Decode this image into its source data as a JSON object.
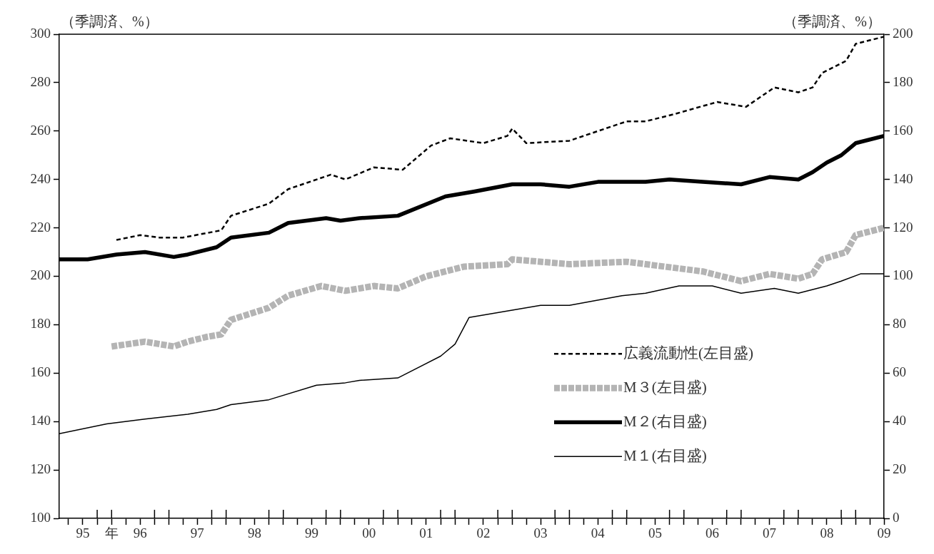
{
  "chart_data": {
    "type": "line",
    "ylabel": "（季調済、%）",
    "y2label": "（季調済、%）",
    "xlim": [
      "1995-02",
      "2009-07"
    ],
    "ylim": [
      100,
      300
    ],
    "y2lim": [
      0,
      200
    ],
    "yticks": [
      100,
      120,
      140,
      160,
      180,
      200,
      220,
      240,
      260,
      280,
      300
    ],
    "y2ticks": [
      0,
      20,
      40,
      60,
      80,
      100,
      120,
      140,
      160,
      180,
      200
    ],
    "xticks": [
      {
        "value": "1995-07",
        "label": "95"
      },
      {
        "value": "1996-01",
        "label": "年"
      },
      {
        "value": "1996-07",
        "label": "96"
      },
      {
        "value": "1997-07",
        "label": "97"
      },
      {
        "value": "1998-07",
        "label": "98"
      },
      {
        "value": "1999-07",
        "label": "99"
      },
      {
        "value": "2000-07",
        "label": "00"
      },
      {
        "value": "2001-07",
        "label": "01"
      },
      {
        "value": "2002-07",
        "label": "02"
      },
      {
        "value": "2003-07",
        "label": "03"
      },
      {
        "value": "2004-07",
        "label": "04"
      },
      {
        "value": "2005-07",
        "label": "05"
      },
      {
        "value": "2006-07",
        "label": "06"
      },
      {
        "value": "2007-07",
        "label": "07"
      },
      {
        "value": "2008-07",
        "label": "08"
      },
      {
        "value": "2009-07",
        "label": "09"
      },
      {
        "value": "1995-04",
        "label": null
      },
      {
        "value": "1995-10",
        "label": null
      },
      {
        "value": "1996-04",
        "label": null
      },
      {
        "value": "1996-10",
        "label": null
      },
      {
        "value": "1997-01",
        "label": null
      },
      {
        "value": "1997-04",
        "label": null
      },
      {
        "value": "1997-10",
        "label": null
      },
      {
        "value": "1998-01",
        "label": null
      },
      {
        "value": "1998-04",
        "label": null
      },
      {
        "value": "1998-10",
        "label": null
      },
      {
        "value": "1999-01",
        "label": null
      },
      {
        "value": "1999-04",
        "label": null
      },
      {
        "value": "1999-10",
        "label": null
      },
      {
        "value": "2000-01",
        "label": null
      },
      {
        "value": "2000-04",
        "label": null
      },
      {
        "value": "2000-10",
        "label": null
      },
      {
        "value": "2001-01",
        "label": null
      },
      {
        "value": "2001-04",
        "label": null
      },
      {
        "value": "2001-10",
        "label": null
      },
      {
        "value": "2002-01",
        "label": null
      },
      {
        "value": "2002-04",
        "label": null
      },
      {
        "value": "2002-10",
        "label": null
      },
      {
        "value": "2003-01",
        "label": null
      },
      {
        "value": "2003-04",
        "label": null
      },
      {
        "value": "2003-10",
        "label": null
      },
      {
        "value": "2004-01",
        "label": null
      },
      {
        "value": "2004-04",
        "label": null
      },
      {
        "value": "2004-10",
        "label": null
      },
      {
        "value": "2005-01",
        "label": null
      },
      {
        "value": "2005-04",
        "label": null
      },
      {
        "value": "2005-10",
        "label": null
      },
      {
        "value": "2006-01",
        "label": null
      },
      {
        "value": "2006-04",
        "label": null
      },
      {
        "value": "2006-10",
        "label": null
      },
      {
        "value": "2007-01",
        "label": null
      },
      {
        "value": "2007-04",
        "label": null
      },
      {
        "value": "2007-10",
        "label": null
      },
      {
        "value": "2008-01",
        "label": null
      },
      {
        "value": "2008-04",
        "label": null
      },
      {
        "value": "2008-10",
        "label": null
      },
      {
        "value": "2009-01",
        "label": null
      },
      {
        "value": "2009-04",
        "label": null
      }
    ],
    "grid": false,
    "legend": "bottom right",
    "marker": "none",
    "series": [
      {
        "name": "広義流動性(左目盛)",
        "color": "#000000",
        "line_style": "dashed",
        "x": [
          "1996-02",
          "1996-07",
          "1996-11",
          "1997-04",
          "1997-12",
          "1998-02",
          "1998-10",
          "1999-02",
          "1999-11",
          "2000-02",
          "2000-08",
          "2001-02",
          "2001-08",
          "2001-12",
          "2002-07",
          "2002-12",
          "2003-01",
          "2003-04",
          "2004-01",
          "2004-10",
          "2005-01",
          "2005-05",
          "2005-11",
          "2006-08",
          "2007-02",
          "2007-08",
          "2008-01",
          "2008-04",
          "2008-06",
          "2008-11",
          "2009-01",
          "2009-07"
        ],
        "values": [
          215,
          217,
          216,
          216,
          219,
          225,
          230,
          236,
          242,
          240,
          245,
          244,
          254,
          257,
          255,
          258,
          261,
          255,
          256,
          262,
          264,
          264,
          267,
          272,
          270,
          278,
          276,
          278,
          284,
          289,
          296,
          299
        ]
      },
      {
        "name": "M３(左目盛)",
        "color": "#b4b4b4",
        "line_style": "dashed",
        "x": [
          "1996-01",
          "1996-08",
          "1997-02",
          "1997-05",
          "1997-09",
          "1997-12",
          "1998-02",
          "1998-10",
          "1999-02",
          "1999-09",
          "2000-02",
          "2000-08",
          "2001-01",
          "2001-07",
          "2001-11",
          "2002-03",
          "2002-12",
          "2003-01",
          "2004-01",
          "2005-01",
          "2005-05",
          "2006-05",
          "2007-01",
          "2007-07",
          "2008-01",
          "2008-04",
          "2008-06",
          "2008-11",
          "2009-01",
          "2009-07"
        ],
        "values": [
          171,
          173,
          171,
          173,
          175,
          176,
          182,
          187,
          192,
          196,
          194,
          196,
          195,
          200,
          202,
          204,
          205,
          207,
          205,
          206,
          205,
          202,
          198,
          201,
          199,
          201,
          207,
          210,
          217,
          220
        ]
      },
      {
        "name": "M２(右目盛)",
        "color": "#000000",
        "line_style": "solid",
        "axis": "y2",
        "x": [
          "1995-02",
          "1995-08",
          "1996-02",
          "1996-08",
          "1997-02",
          "1997-05",
          "1997-11",
          "1998-02",
          "1998-10",
          "1999-02",
          "1999-10",
          "2000-01",
          "2000-05",
          "2001-01",
          "2001-11",
          "2002-05",
          "2003-01",
          "2003-07",
          "2004-01",
          "2004-07",
          "2005-01",
          "2005-05",
          "2005-10",
          "2006-05",
          "2007-01",
          "2007-07",
          "2008-01",
          "2008-04",
          "2008-07",
          "2008-10",
          "2009-01",
          "2009-07"
        ],
        "values": [
          107,
          107,
          109,
          110,
          108,
          109,
          112,
          116,
          118,
          122,
          124,
          123,
          124,
          125,
          133,
          135,
          138,
          138,
          137,
          139,
          139,
          139,
          140,
          139,
          138,
          141,
          140,
          143,
          147,
          150,
          155,
          158
        ]
      },
      {
        "name": "M１(右目盛)",
        "color": "#000000",
        "line_style": "solid",
        "axis": "y2",
        "x": [
          "1995-02",
          "1995-12",
          "1996-08",
          "1997-05",
          "1997-11",
          "1998-02",
          "1998-10",
          "1999-08",
          "2000-02",
          "2000-05",
          "2001-01",
          "2001-10",
          "2002-01",
          "2002-04",
          "2003-01",
          "2003-07",
          "2004-01",
          "2004-12",
          "2005-05",
          "2005-12",
          "2006-07",
          "2007-01",
          "2007-08",
          "2008-01",
          "2008-07",
          "2008-10",
          "2009-02",
          "2009-07"
        ],
        "values": [
          35,
          39,
          41,
          43,
          45,
          47,
          49,
          55,
          56,
          57,
          58,
          67,
          72,
          83,
          86,
          88,
          88,
          92,
          93,
          96,
          96,
          93,
          95,
          93,
          96,
          98,
          101,
          101
        ]
      }
    ]
  }
}
